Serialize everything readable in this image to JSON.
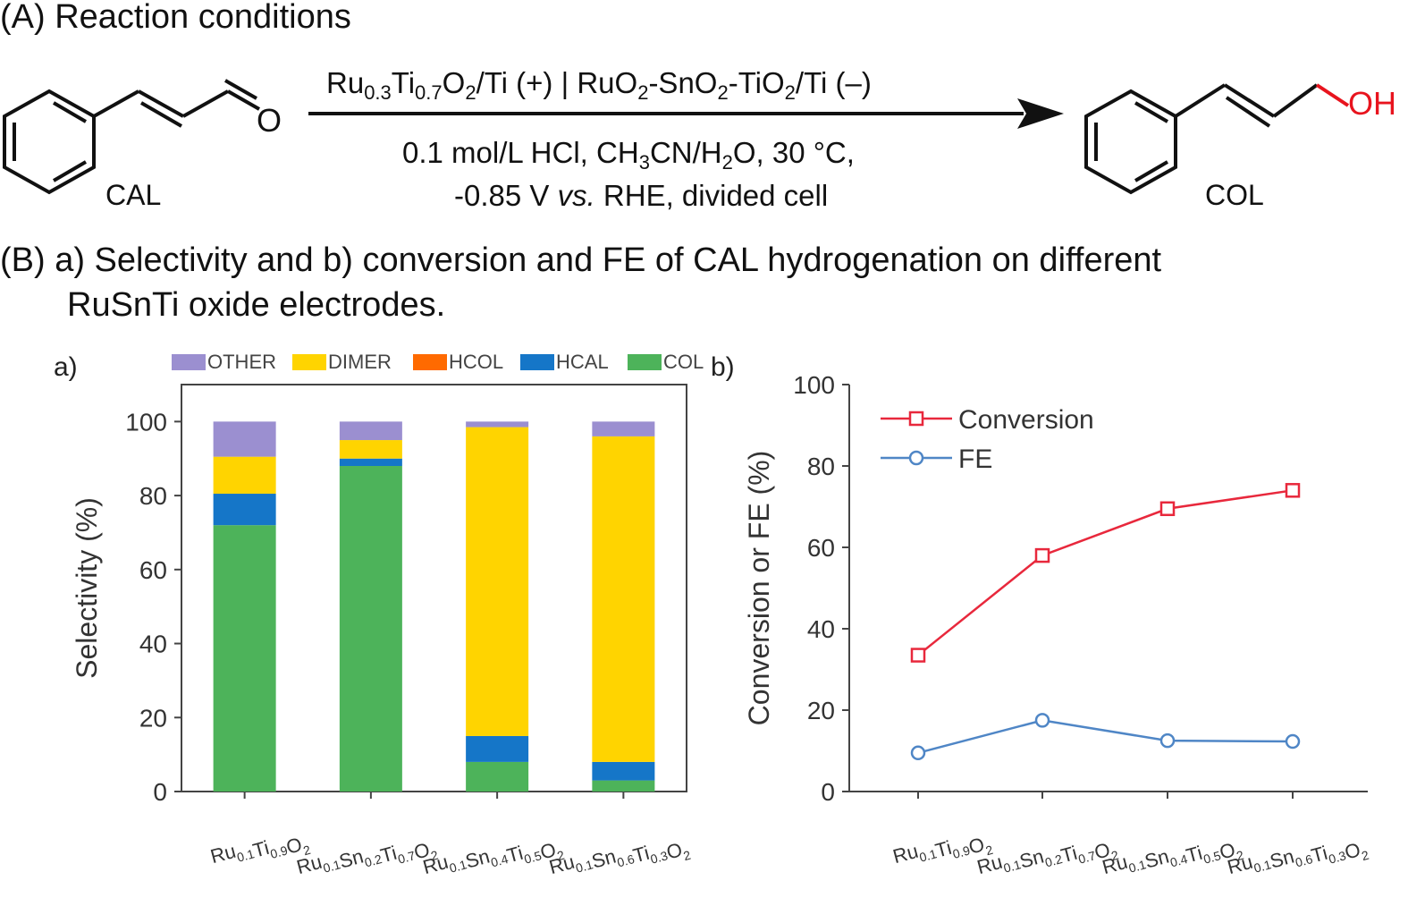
{
  "section_a": {
    "title": "(A) Reaction conditions",
    "reactant_label": "CAL",
    "product_label": "COL",
    "reactant_o": "O",
    "product_oh": "OH",
    "cond1": {
      "a": "Ru",
      "a_sub1": "0.3",
      "b": "Ti",
      "b_sub": "0.7",
      "c": "O",
      "c_sub": "2",
      "d": "/Ti (+) | RuO",
      "d_sub": "2",
      "e": "-SnO",
      "e_sub": "2",
      "f": "-TiO",
      "f_sub": "2",
      "g": "/Ti (–)"
    },
    "cond2": {
      "a": "0.1 mol/L HCl, CH",
      "a_sub": "3",
      "b": "CN/H",
      "b_sub": "2",
      "c": "O, 30 °C,"
    },
    "cond3": {
      "a": "-0.85 V ",
      "b": "vs.",
      "c": " RHE, divided cell"
    }
  },
  "section_b": {
    "title_line1": "(B) a) Selectivity and b) conversion and FE of CAL hydrogenation on different",
    "title_line2": "RuSnTi oxide electrodes."
  },
  "colors": {
    "OTHER": "#9b8fd0",
    "DIMER": "#ffd400",
    "HCOL": "#ff6a00",
    "HCAL": "#1576c8",
    "COL": "#4db35a",
    "conversion": "#e8283c",
    "fe": "#4f86c6",
    "oh": "#e8141e"
  },
  "chart_data": [
    {
      "panel": "a)",
      "type": "bar",
      "stacked": true,
      "ylabel": "Selectivity (%)",
      "ylim": [
        0,
        110
      ],
      "yticks": [
        0,
        20,
        40,
        60,
        80,
        100
      ],
      "legend_placement": "top",
      "categories": [
        {
          "main": "Ru",
          "parts": [
            [
              "Ru",
              "0.1"
            ],
            [
              "Ti",
              "0.9"
            ],
            [
              "O",
              "2"
            ]
          ]
        },
        {
          "main": "Ru",
          "parts": [
            [
              "Ru",
              "0.1"
            ],
            [
              "Sn",
              "0.2"
            ],
            [
              "Ti",
              "0.7"
            ],
            [
              "O",
              "2"
            ]
          ]
        },
        {
          "main": "Ru",
          "parts": [
            [
              "Ru",
              "0.1"
            ],
            [
              "Sn",
              "0.4"
            ],
            [
              "Ti",
              "0.5"
            ],
            [
              "O",
              "2"
            ]
          ]
        },
        {
          "main": "Ru",
          "parts": [
            [
              "Ru",
              "0.1"
            ],
            [
              "Sn",
              "0.6"
            ],
            [
              "Ti",
              "0.3"
            ],
            [
              "O",
              "2"
            ]
          ]
        }
      ],
      "series": [
        {
          "name": "COL",
          "values": [
            72,
            88,
            8,
            3
          ]
        },
        {
          "name": "HCAL",
          "values": [
            8.5,
            2,
            7,
            5
          ]
        },
        {
          "name": "HCOL",
          "values": [
            0,
            0,
            0,
            0
          ]
        },
        {
          "name": "DIMER",
          "values": [
            10,
            5,
            83.5,
            88
          ]
        },
        {
          "name": "OTHER",
          "values": [
            9.5,
            5,
            1.5,
            4
          ]
        }
      ],
      "legend_order": [
        "OTHER",
        "DIMER",
        "HCOL",
        "HCAL",
        "COL"
      ]
    },
    {
      "panel": "b)",
      "type": "line",
      "ylabel": "Conversion or FE (%)",
      "ylim": [
        0,
        100
      ],
      "yticks": [
        0,
        20,
        40,
        60,
        80,
        100
      ],
      "legend_placement": "top-left",
      "categories": [
        {
          "parts": [
            [
              "Ru",
              "0.1"
            ],
            [
              "Ti",
              "0.9"
            ],
            [
              "O",
              "2"
            ]
          ]
        },
        {
          "parts": [
            [
              "Ru",
              "0.1"
            ],
            [
              "Sn",
              "0.2"
            ],
            [
              "Ti",
              "0.7"
            ],
            [
              "O",
              "2"
            ]
          ]
        },
        {
          "parts": [
            [
              "Ru",
              "0.1"
            ],
            [
              "Sn",
              "0.4"
            ],
            [
              "Ti",
              "0.5"
            ],
            [
              "O",
              "2"
            ]
          ]
        },
        {
          "parts": [
            [
              "Ru",
              "0.1"
            ],
            [
              "Sn",
              "0.6"
            ],
            [
              "Ti",
              "0.3"
            ],
            [
              "O",
              "2"
            ]
          ]
        }
      ],
      "series": [
        {
          "name": "Conversion",
          "marker": "square",
          "values": [
            33.5,
            58,
            69.5,
            74
          ]
        },
        {
          "name": "FE",
          "marker": "circle",
          "values": [
            9.5,
            17.5,
            12.5,
            12.3
          ]
        }
      ]
    }
  ]
}
